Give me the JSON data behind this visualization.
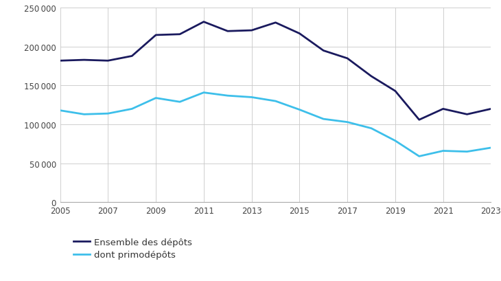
{
  "years": [
    2005,
    2006,
    2007,
    2008,
    2009,
    2010,
    2011,
    2012,
    2013,
    2014,
    2015,
    2016,
    2017,
    2018,
    2019,
    2020,
    2021,
    2022,
    2023
  ],
  "ensemble": [
    182000,
    183000,
    182000,
    188000,
    215000,
    216000,
    232000,
    220000,
    221000,
    231000,
    217000,
    195000,
    185000,
    162000,
    143000,
    106000,
    120000,
    113000,
    120000
  ],
  "primodepots": [
    118000,
    113000,
    114000,
    120000,
    134000,
    129000,
    141000,
    137000,
    135000,
    130000,
    119000,
    107000,
    103000,
    95000,
    79000,
    59000,
    66000,
    65000,
    70000
  ],
  "color_ensemble": "#1a1a5e",
  "color_primo": "#3dbfea",
  "legend_ensemble": "Ensemble des dépôts",
  "legend_primo": "dont primodépôts",
  "ylim": [
    0,
    250000
  ],
  "yticks": [
    0,
    50000,
    100000,
    150000,
    200000,
    250000
  ],
  "ytick_labels": [
    "0",
    "50 000",
    "100 000",
    "150 000",
    "200 000",
    "250 000"
  ],
  "xtick_labels": [
    "2005",
    "2007",
    "2009",
    "2011",
    "2013",
    "2015",
    "2017",
    "2019",
    "2021",
    "2023"
  ],
  "xticks": [
    2005,
    2007,
    2009,
    2011,
    2013,
    2015,
    2017,
    2019,
    2021,
    2023
  ],
  "background_color": "#ffffff",
  "grid_color": "#c8c8c8",
  "line_width": 2.0,
  "tick_fontsize": 8.5,
  "legend_fontsize": 9.5
}
